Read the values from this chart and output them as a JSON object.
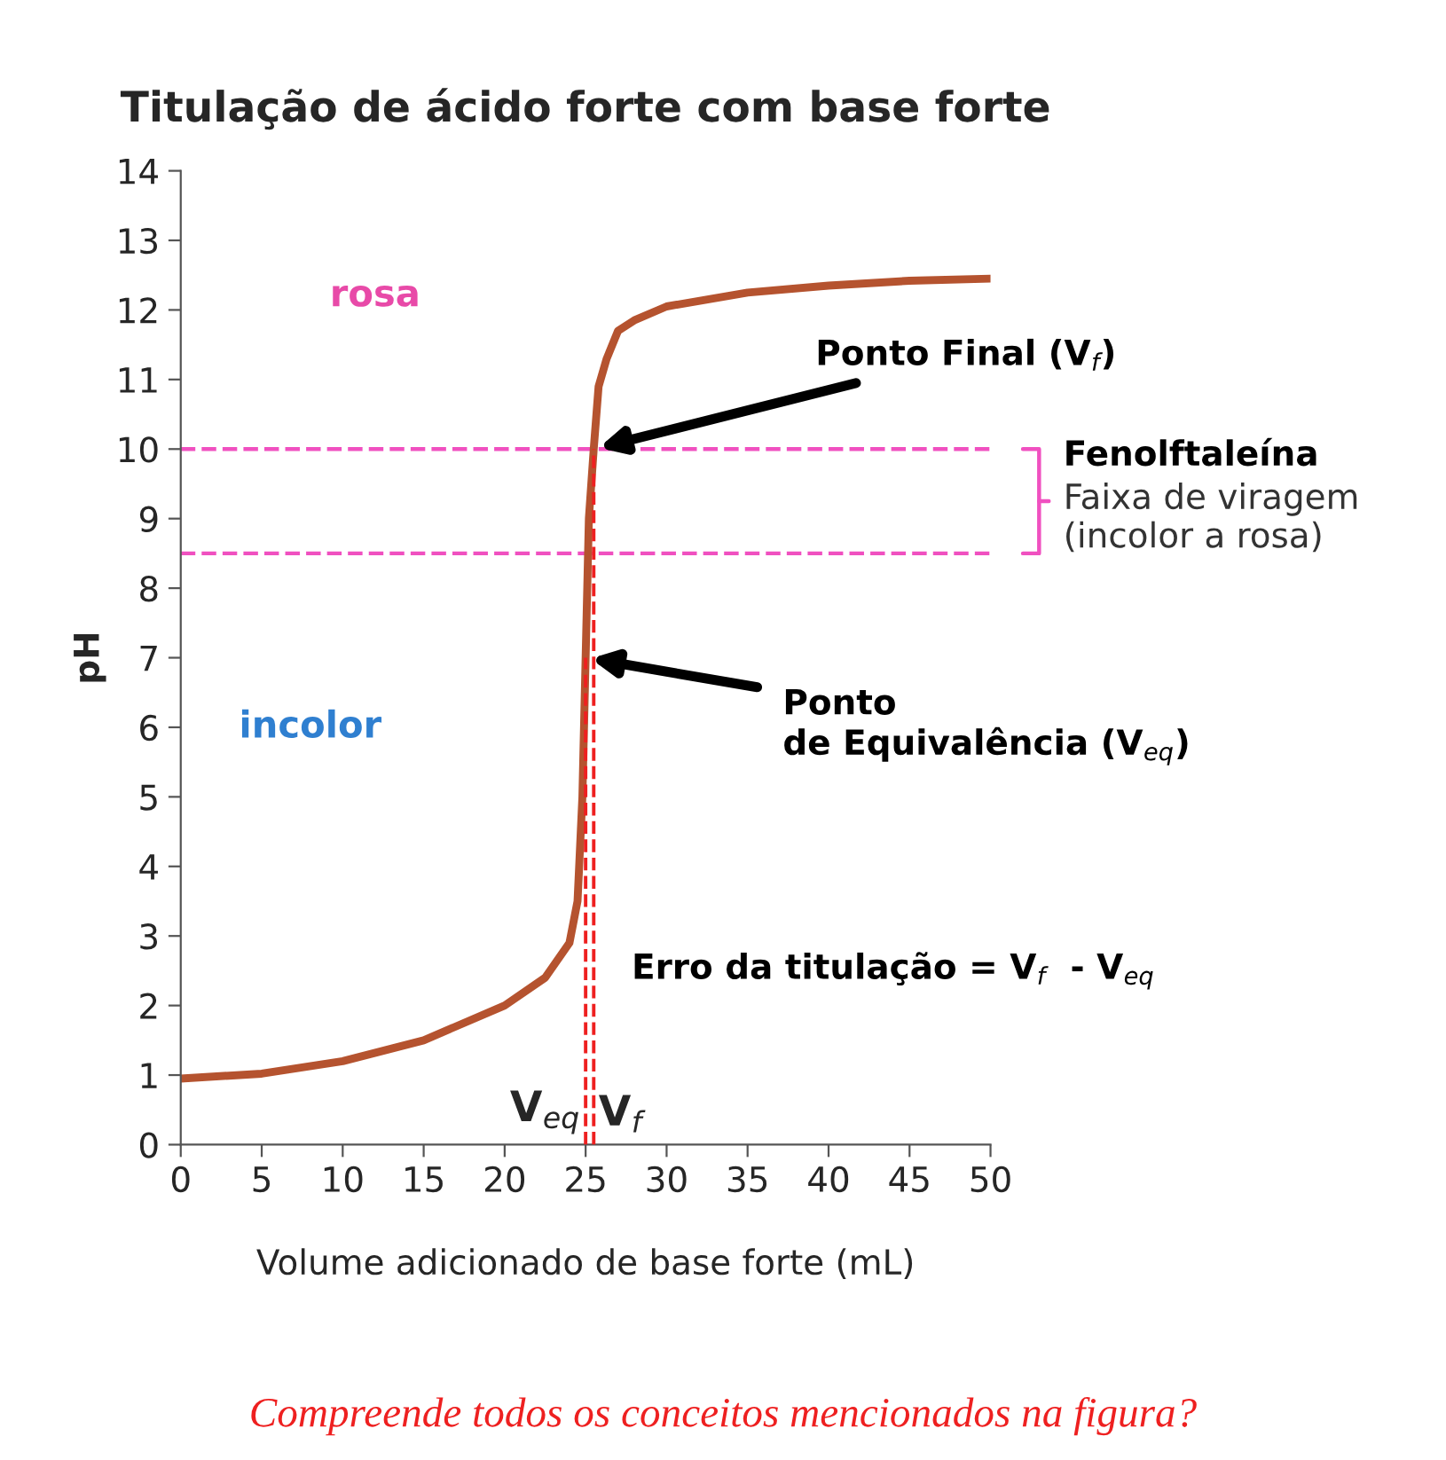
{
  "chart_data": {
    "type": "line",
    "title": "Titulação de ácido forte com base forte",
    "xlabel": "Volume adicionado de base forte (mL)",
    "ylabel": "pH",
    "xlim": [
      0,
      50
    ],
    "xticks": [
      0,
      5,
      10,
      15,
      20,
      25,
      30,
      35,
      40,
      45,
      50
    ],
    "ylim": [
      0,
      14
    ],
    "yticks": [
      0,
      1,
      2,
      3,
      4,
      5,
      6,
      7,
      8,
      9,
      10,
      11,
      12,
      13,
      14
    ],
    "grid": false,
    "legend": false,
    "marker": "none",
    "line_style": "solid",
    "series": [
      {
        "color": "#b5532f",
        "x": [
          0,
          5,
          10,
          15,
          20,
          22.5,
          24,
          24.5,
          24.8,
          25,
          25.2,
          25.5,
          25.8,
          26.3,
          27,
          28,
          30,
          35,
          40,
          45,
          50
        ],
        "values": [
          0.95,
          1.02,
          1.2,
          1.5,
          2.0,
          2.4,
          2.9,
          3.5,
          5,
          7,
          9,
          10,
          10.9,
          11.3,
          11.7,
          11.85,
          12.05,
          12.25,
          12.35,
          12.42,
          12.45
        ]
      }
    ],
    "ref_lines": [
      {
        "axis": "y",
        "value": 10,
        "color": "#f050c0",
        "line_style": "dashed"
      },
      {
        "axis": "y",
        "value": 8.5,
        "color": "#f050c0",
        "line_style": "dashed"
      },
      {
        "axis": "x",
        "value": 25,
        "label": "V$_{eq}$",
        "color": "#ee2020",
        "line_style": "dashed"
      },
      {
        "axis": "x",
        "value": 25.5,
        "label": "V$_{f}$",
        "color": "#ee2020",
        "line_style": "dashed"
      }
    ],
    "annotations": [
      "rosa",
      "incolor",
      {
        "text": "Ponto Final (V$_{f}$)",
        "x": 25.5,
        "y": 10
      },
      {
        "text": "Ponto\nde Equivalência (V$_{eq}$)",
        "x": 25,
        "y": 7
      },
      "Fenolftaleína",
      "Faixa de viragem\n(incolor a rosa)",
      "Erro da titulação = V$_{f}$  - V$_{eq}$",
      "Compreende todos os conceitos mencionados na figura?"
    ]
  }
}
